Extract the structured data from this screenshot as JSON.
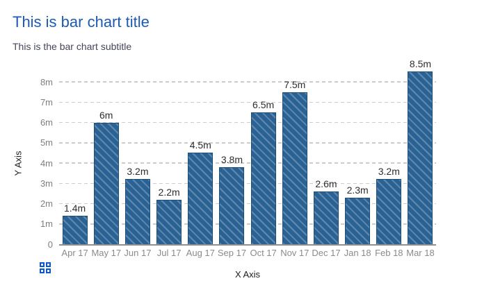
{
  "page": {
    "title": "This is bar chart title",
    "subtitle": "This is the bar chart subtitle"
  },
  "icons": {
    "grid_icon": "grid-2x2-menu"
  },
  "colors": {
    "title": "#1e59b3",
    "subtitle": "#44445a",
    "bar_fill": "#2b6294",
    "bar_border": "#1c4d78",
    "bar_hatch": "rgba(255,255,255,0.25)",
    "grid_line": "#cbcbcb",
    "axis_line": "#8f8f8f",
    "x_tick_label": "#8a8a8a",
    "y_tick_label": "#7e7e7e",
    "value_label": "#2d2d30",
    "icon_blue": "#0b57d0"
  },
  "chart_data": {
    "type": "bar",
    "title": "This is bar chart title",
    "subtitle": "This is the bar chart subtitle",
    "categories": [
      "Apr 17",
      "May 17",
      "Jun 17",
      "Jul 17",
      "Aug 17",
      "Sep 17",
      "Oct 17",
      "Nov 17",
      "Dec 17",
      "Jan 18",
      "Feb 18",
      "Mar 18"
    ],
    "values": [
      1.4,
      6,
      3.2,
      2.2,
      4.5,
      3.8,
      6.5,
      7.5,
      2.6,
      2.3,
      3.2,
      8.5
    ],
    "value_labels": [
      "1.4m",
      "6m",
      "3.2m",
      "2.2m",
      "4.5m",
      "3.8m",
      "6.5m",
      "7.5m",
      "2.6m",
      "2.3m",
      "3.2m",
      "8.5m"
    ],
    "xlabel": "X Axis",
    "ylabel": "Y Axis",
    "ylim": [
      0,
      8.6
    ],
    "yticks": [
      "0",
      "1m",
      "2m",
      "3m",
      "4m",
      "5m",
      "6m",
      "7m",
      "8m"
    ],
    "grid": "dashed horizontal gridlines",
    "legend": "none",
    "bar_style": "solid fill with light diagonal hatch (top-left to bottom-right)"
  }
}
